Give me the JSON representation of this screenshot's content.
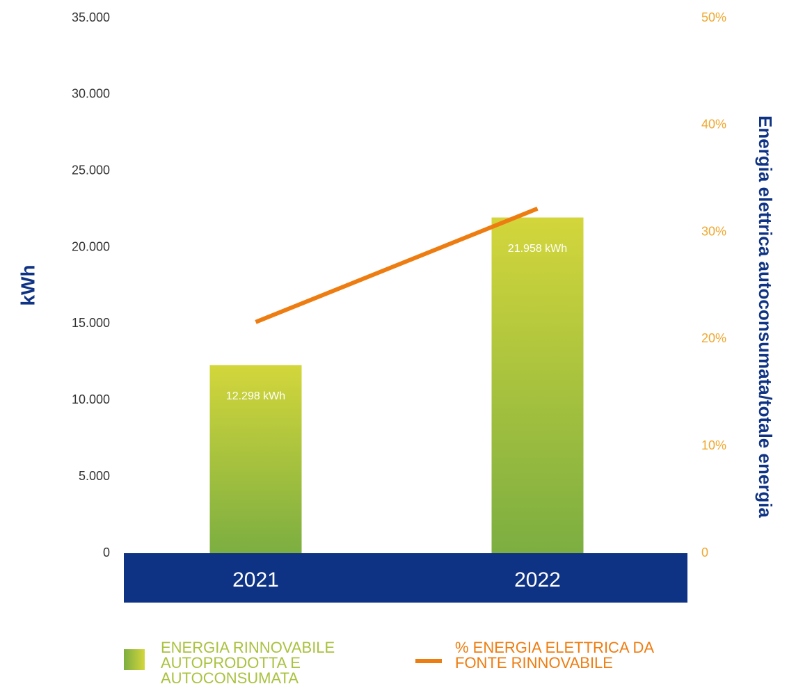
{
  "chart_data": {
    "type": "bar",
    "categories": [
      "2021",
      "2022"
    ],
    "series": [
      {
        "name": "ENERGIA RINNOVABILE AUTOPRODOTTA E AUTOCONSUMATA",
        "type": "bar",
        "color": "#a9c23f",
        "values": [
          12298,
          21958
        ],
        "value_labels": [
          "12.298 kWh",
          "21.958 kWh"
        ]
      },
      {
        "name": "% ENERGIA ELETTRICA DA FONTE RINNOVABILE",
        "type": "line",
        "axis": "y2",
        "color": "#ee7d11",
        "values": [
          21.6,
          32.2
        ]
      }
    ],
    "ylabel": "kWh",
    "y2label": "Energia elettrica autoconsumata/totale energia",
    "ylim": [
      0,
      35000
    ],
    "yticks": [
      0,
      {
        "value": 5000,
        "label": "5.000"
      },
      {
        "value": 10000,
        "label": "10.000"
      },
      {
        "value": 15000,
        "label": "15.000"
      },
      {
        "value": 20000,
        "label": "20.000"
      },
      {
        "value": 25000,
        "label": "25.000"
      },
      {
        "value": 30000,
        "label": "30.000"
      },
      {
        "value": 35000,
        "label": "35.000"
      }
    ],
    "y2lim": [
      0,
      50
    ],
    "y2ticks": [
      0,
      {
        "value": 10,
        "label": "10%"
      },
      {
        "value": 20,
        "label": "20%"
      },
      {
        "value": 30,
        "label": "30%"
      },
      {
        "value": 40,
        "label": "40%"
      },
      {
        "value": 50,
        "label": "50%"
      }
    ],
    "grid": true
  }
}
